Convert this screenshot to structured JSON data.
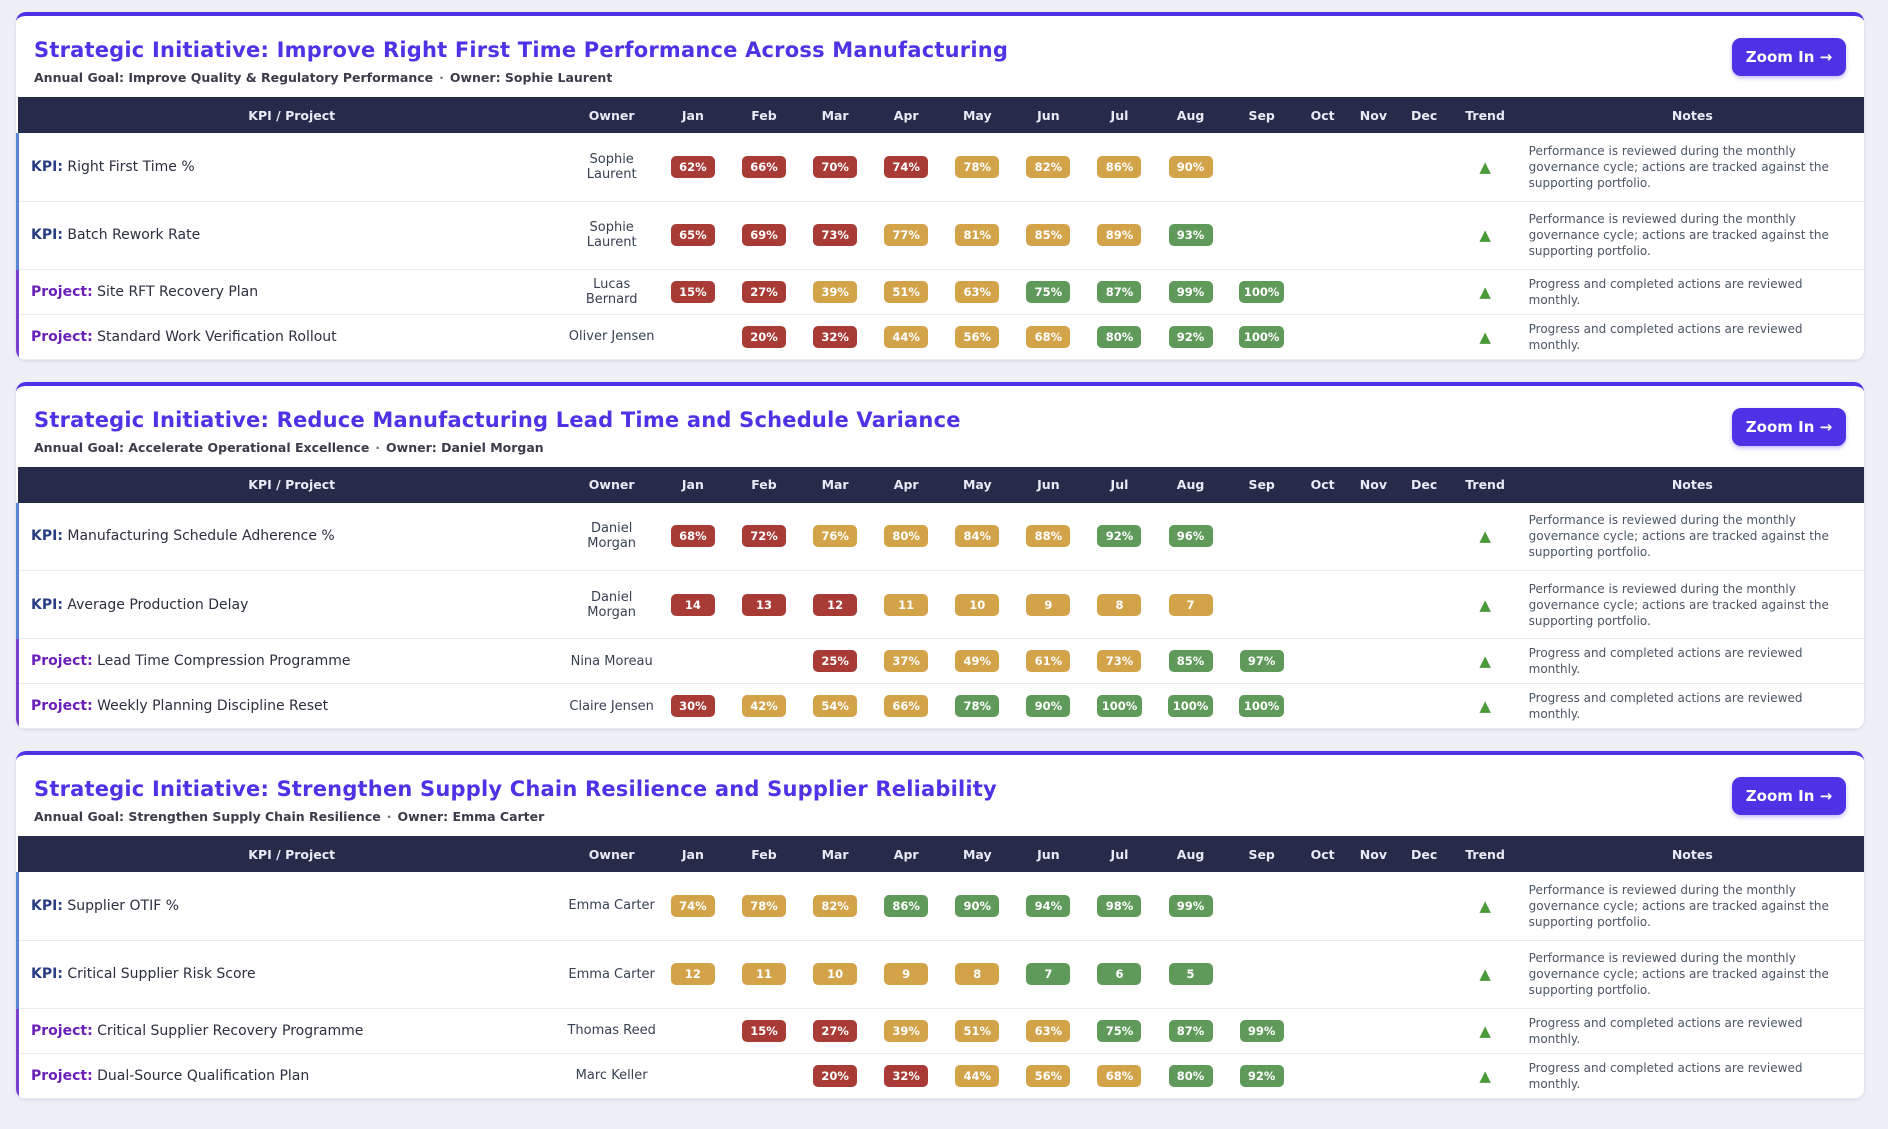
{
  "columns": [
    "KPI / Project",
    "Owner",
    "Jan",
    "Feb",
    "Mar",
    "Apr",
    "May",
    "Jun",
    "Jul",
    "Aug",
    "Sep",
    "Oct",
    "Nov",
    "Dec",
    "Trend",
    "Notes"
  ],
  "zoom_label": "Zoom In →",
  "status_colors": {
    "red": "#a93b36",
    "amber": "#d3a34a",
    "green": "#5f9a5a"
  },
  "initiatives": [
    {
      "title": "Strategic Initiative: Improve Right First Time Performance Across Manufacturing",
      "goal": "Annual Goal: Improve Quality & Regulatory Performance",
      "owner": "Owner: Sophie Laurent",
      "rows": [
        {
          "kind": "kpi",
          "prefix": "KPI:",
          "name": "Right First Time %",
          "owner": "Sophie Laurent",
          "months": [
            {
              "v": "62%",
              "s": "red"
            },
            {
              "v": "66%",
              "s": "red"
            },
            {
              "v": "70%",
              "s": "red"
            },
            {
              "v": "74%",
              "s": "red"
            },
            {
              "v": "78%",
              "s": "amber"
            },
            {
              "v": "82%",
              "s": "amber"
            },
            {
              "v": "86%",
              "s": "amber"
            },
            {
              "v": "90%",
              "s": "amber"
            },
            null,
            null,
            null,
            null
          ],
          "trend": "▲",
          "notes": "Performance is reviewed during the monthly governance cycle; actions are tracked against the supporting portfolio."
        },
        {
          "kind": "kpi",
          "prefix": "KPI:",
          "name": "Batch Rework Rate",
          "owner": "Sophie Laurent",
          "months": [
            {
              "v": "65%",
              "s": "red"
            },
            {
              "v": "69%",
              "s": "red"
            },
            {
              "v": "73%",
              "s": "red"
            },
            {
              "v": "77%",
              "s": "amber"
            },
            {
              "v": "81%",
              "s": "amber"
            },
            {
              "v": "85%",
              "s": "amber"
            },
            {
              "v": "89%",
              "s": "amber"
            },
            {
              "v": "93%",
              "s": "green"
            },
            null,
            null,
            null,
            null
          ],
          "trend": "▲",
          "notes": "Performance is reviewed during the monthly governance cycle; actions are tracked against the supporting portfolio."
        },
        {
          "kind": "proj",
          "prefix": "Project:",
          "name": "Site RFT Recovery Plan",
          "owner": "Lucas Bernard",
          "months": [
            {
              "v": "15%",
              "s": "red"
            },
            {
              "v": "27%",
              "s": "red"
            },
            {
              "v": "39%",
              "s": "amber"
            },
            {
              "v": "51%",
              "s": "amber"
            },
            {
              "v": "63%",
              "s": "amber"
            },
            {
              "v": "75%",
              "s": "green"
            },
            {
              "v": "87%",
              "s": "green"
            },
            {
              "v": "99%",
              "s": "green"
            },
            {
              "v": "100%",
              "s": "green"
            },
            null,
            null,
            null
          ],
          "trend": "▲",
          "notes": "Progress and completed actions are reviewed monthly."
        },
        {
          "kind": "proj",
          "prefix": "Project:",
          "name": "Standard Work Verification Rollout",
          "owner": "Oliver Jensen",
          "months": [
            null,
            {
              "v": "20%",
              "s": "red"
            },
            {
              "v": "32%",
              "s": "red"
            },
            {
              "v": "44%",
              "s": "amber"
            },
            {
              "v": "56%",
              "s": "amber"
            },
            {
              "v": "68%",
              "s": "amber"
            },
            {
              "v": "80%",
              "s": "green"
            },
            {
              "v": "92%",
              "s": "green"
            },
            {
              "v": "100%",
              "s": "green"
            },
            null,
            null,
            null
          ],
          "trend": "▲",
          "notes": "Progress and completed actions are reviewed monthly."
        }
      ]
    },
    {
      "title": "Strategic Initiative: Reduce Manufacturing Lead Time and Schedule Variance",
      "goal": "Annual Goal: Accelerate Operational Excellence",
      "owner": "Owner: Daniel Morgan",
      "rows": [
        {
          "kind": "kpi",
          "prefix": "KPI:",
          "name": "Manufacturing Schedule Adherence %",
          "owner": "Daniel Morgan",
          "months": [
            {
              "v": "68%",
              "s": "red"
            },
            {
              "v": "72%",
              "s": "red"
            },
            {
              "v": "76%",
              "s": "amber"
            },
            {
              "v": "80%",
              "s": "amber"
            },
            {
              "v": "84%",
              "s": "amber"
            },
            {
              "v": "88%",
              "s": "amber"
            },
            {
              "v": "92%",
              "s": "green"
            },
            {
              "v": "96%",
              "s": "green"
            },
            null,
            null,
            null,
            null
          ],
          "trend": "▲",
          "notes": "Performance is reviewed during the monthly governance cycle; actions are tracked against the supporting portfolio."
        },
        {
          "kind": "kpi",
          "prefix": "KPI:",
          "name": "Average Production Delay",
          "owner": "Daniel Morgan",
          "months": [
            {
              "v": "14",
              "s": "red"
            },
            {
              "v": "13",
              "s": "red"
            },
            {
              "v": "12",
              "s": "red"
            },
            {
              "v": "11",
              "s": "amber"
            },
            {
              "v": "10",
              "s": "amber"
            },
            {
              "v": "9",
              "s": "amber"
            },
            {
              "v": "8",
              "s": "amber"
            },
            {
              "v": "7",
              "s": "amber"
            },
            null,
            null,
            null,
            null
          ],
          "trend": "▲",
          "notes": "Performance is reviewed during the monthly governance cycle; actions are tracked against the supporting portfolio."
        },
        {
          "kind": "proj",
          "prefix": "Project:",
          "name": "Lead Time Compression Programme",
          "owner": "Nina Moreau",
          "months": [
            null,
            null,
            {
              "v": "25%",
              "s": "red"
            },
            {
              "v": "37%",
              "s": "amber"
            },
            {
              "v": "49%",
              "s": "amber"
            },
            {
              "v": "61%",
              "s": "amber"
            },
            {
              "v": "73%",
              "s": "amber"
            },
            {
              "v": "85%",
              "s": "green"
            },
            {
              "v": "97%",
              "s": "green"
            },
            null,
            null,
            null
          ],
          "trend": "▲",
          "notes": "Progress and completed actions are reviewed monthly."
        },
        {
          "kind": "proj",
          "prefix": "Project:",
          "name": "Weekly Planning Discipline Reset",
          "owner": "Claire Jensen",
          "months": [
            {
              "v": "30%",
              "s": "red"
            },
            {
              "v": "42%",
              "s": "amber"
            },
            {
              "v": "54%",
              "s": "amber"
            },
            {
              "v": "66%",
              "s": "amber"
            },
            {
              "v": "78%",
              "s": "green"
            },
            {
              "v": "90%",
              "s": "green"
            },
            {
              "v": "100%",
              "s": "green"
            },
            {
              "v": "100%",
              "s": "green"
            },
            {
              "v": "100%",
              "s": "green"
            },
            null,
            null,
            null
          ],
          "trend": "▲",
          "notes": "Progress and completed actions are reviewed monthly."
        }
      ]
    },
    {
      "title": "Strategic Initiative: Strengthen Supply Chain Resilience and Supplier Reliability",
      "goal": "Annual Goal: Strengthen Supply Chain Resilience",
      "owner": "Owner: Emma Carter",
      "rows": [
        {
          "kind": "kpi",
          "prefix": "KPI:",
          "name": "Supplier OTIF %",
          "owner": "Emma Carter",
          "months": [
            {
              "v": "74%",
              "s": "amber"
            },
            {
              "v": "78%",
              "s": "amber"
            },
            {
              "v": "82%",
              "s": "amber"
            },
            {
              "v": "86%",
              "s": "green"
            },
            {
              "v": "90%",
              "s": "green"
            },
            {
              "v": "94%",
              "s": "green"
            },
            {
              "v": "98%",
              "s": "green"
            },
            {
              "v": "99%",
              "s": "green"
            },
            null,
            null,
            null,
            null
          ],
          "trend": "▲",
          "notes": "Performance is reviewed during the monthly governance cycle; actions are tracked against the supporting portfolio."
        },
        {
          "kind": "kpi",
          "prefix": "KPI:",
          "name": "Critical Supplier Risk Score",
          "owner": "Emma Carter",
          "months": [
            {
              "v": "12",
              "s": "amber"
            },
            {
              "v": "11",
              "s": "amber"
            },
            {
              "v": "10",
              "s": "amber"
            },
            {
              "v": "9",
              "s": "amber"
            },
            {
              "v": "8",
              "s": "amber"
            },
            {
              "v": "7",
              "s": "green"
            },
            {
              "v": "6",
              "s": "green"
            },
            {
              "v": "5",
              "s": "green"
            },
            null,
            null,
            null,
            null
          ],
          "trend": "▲",
          "notes": "Performance is reviewed during the monthly governance cycle; actions are tracked against the supporting portfolio."
        },
        {
          "kind": "proj",
          "prefix": "Project:",
          "name": "Critical Supplier Recovery Programme",
          "owner": "Thomas Reed",
          "months": [
            null,
            {
              "v": "15%",
              "s": "red"
            },
            {
              "v": "27%",
              "s": "red"
            },
            {
              "v": "39%",
              "s": "amber"
            },
            {
              "v": "51%",
              "s": "amber"
            },
            {
              "v": "63%",
              "s": "amber"
            },
            {
              "v": "75%",
              "s": "green"
            },
            {
              "v": "87%",
              "s": "green"
            },
            {
              "v": "99%",
              "s": "green"
            },
            null,
            null,
            null
          ],
          "trend": "▲",
          "notes": "Progress and completed actions are reviewed monthly."
        },
        {
          "kind": "proj",
          "prefix": "Project:",
          "name": "Dual-Source Qualification Plan",
          "owner": "Marc Keller",
          "months": [
            null,
            null,
            {
              "v": "20%",
              "s": "red"
            },
            {
              "v": "32%",
              "s": "red"
            },
            {
              "v": "44%",
              "s": "amber"
            },
            {
              "v": "56%",
              "s": "amber"
            },
            {
              "v": "68%",
              "s": "amber"
            },
            {
              "v": "80%",
              "s": "green"
            },
            {
              "v": "92%",
              "s": "green"
            },
            null,
            null,
            null
          ],
          "trend": "▲",
          "notes": "Progress and completed actions are reviewed monthly."
        }
      ]
    }
  ]
}
